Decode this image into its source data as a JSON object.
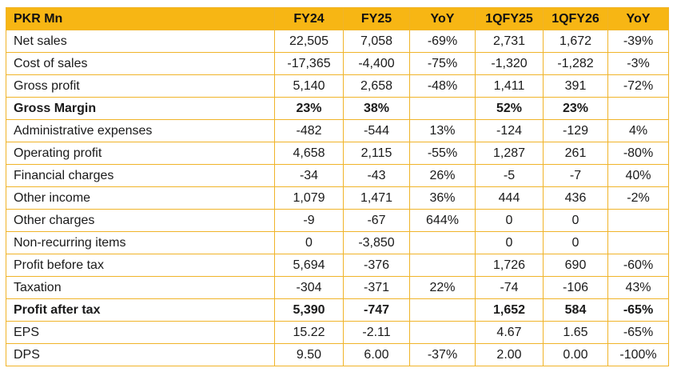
{
  "table": {
    "header": [
      "PKR Mn",
      "FY24",
      "FY25",
      "YoY",
      "1QFY25",
      "1QFY26",
      "YoY"
    ],
    "rows": [
      [
        "Net sales",
        "22,505",
        "7,058",
        "-69%",
        "2,731",
        "1,672",
        "-39%"
      ],
      [
        "Cost of sales",
        "-17,365",
        "-4,400",
        "-75%",
        "-1,320",
        "-1,282",
        "-3%"
      ],
      [
        "Gross profit",
        "5,140",
        "2,658",
        "-48%",
        "1,411",
        "391",
        "-72%"
      ],
      [
        "Gross Margin",
        "23%",
        "38%",
        null,
        "52%",
        "23%",
        null
      ],
      [
        "Administrative expenses",
        "-482",
        "-544",
        "13%",
        "-124",
        "-129",
        "4%"
      ],
      [
        "Operating profit",
        "4,658",
        "2,115",
        "-55%",
        "1,287",
        "261",
        "-80%"
      ],
      [
        "Financial charges",
        "-34",
        "-43",
        "26%",
        "-5",
        "-7",
        "40%"
      ],
      [
        "Other income",
        "1,079",
        "1,471",
        "36%",
        "444",
        "436",
        "-2%"
      ],
      [
        "Other charges",
        "-9",
        "-67",
        "644%",
        "0",
        "0",
        null
      ],
      [
        "Non-recurring items",
        "0",
        "-3,850",
        null,
        "0",
        "0",
        null
      ],
      [
        "Profit before tax",
        "5,694",
        "-376",
        null,
        "1,726",
        "690",
        "-60%"
      ],
      [
        "Taxation",
        "-304",
        "-371",
        "22%",
        "-74",
        "-106",
        "43%"
      ],
      [
        "Profit after tax",
        "5,390",
        "-747",
        null,
        "1,652",
        "584",
        "-65%"
      ],
      [
        "EPS",
        "15.22",
        "-2.11",
        null,
        "4.67",
        "1.65",
        "-65%"
      ],
      [
        "DPS",
        "9.50",
        "6.00",
        "-37%",
        "2.00",
        "0.00",
        "-100%"
      ]
    ]
  }
}
